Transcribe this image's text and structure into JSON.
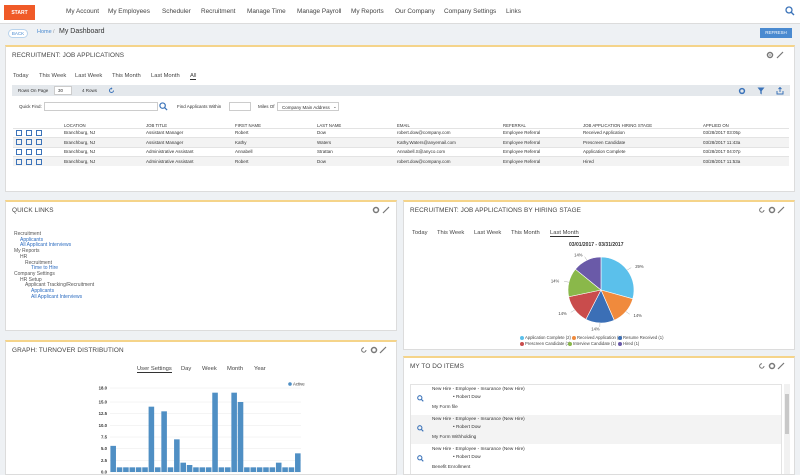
{
  "topnav": {
    "start": "START",
    "items": [
      "My Account",
      "My Employees",
      "Scheduler",
      "Recruitment",
      "Manage Time",
      "Manage Payroll",
      "My Reports",
      "Our Company",
      "Company Settings",
      "Links"
    ]
  },
  "subbar": {
    "back": "BACK",
    "home": "Home",
    "sep": "/",
    "current": "My Dashboard",
    "refresh": "REFRESH"
  },
  "recruit": {
    "title": "RECRUITMENT: JOB APPLICATIONS",
    "tabs": [
      "Today",
      "This Week",
      "Last Week",
      "This Month",
      "Last Month",
      "All"
    ],
    "active_tab": "All",
    "rows_label": "Rows On Page",
    "rows_value": "30",
    "count": "4 Rows",
    "quick_find": "Quick Find:",
    "within": "Find Applicants Within",
    "miles": "Miles Of",
    "address": "Company Main Address",
    "columns": [
      "LOCATION",
      "JOB TITLE",
      "FIRST NAME",
      "LAST NAME",
      "EMAIL",
      "REFERRAL",
      "JOB APPLICATION HIRING STAGE",
      "APPLIED ON"
    ],
    "rows": [
      [
        "Branchburg, NJ",
        "Assistant Manager",
        "Robert",
        "Dow",
        "robert.dow@company.com",
        "Employee Referral",
        "Received Application",
        "03/28/2017 03:05p"
      ],
      [
        "Branchburg, NJ",
        "Assistant Manager",
        "Kathy",
        "Waters",
        "Kathy.Waters@anyemail.com",
        "Employee Referral",
        "Prescreen Candidate",
        "03/28/2017 11:43a"
      ],
      [
        "Branchburg, NJ",
        "Administrative Assistant",
        "Annabell",
        "Strattan",
        "Annabell.S@anyco.com",
        "Employee Referral",
        "Application Complete",
        "03/28/2017 04:07p"
      ],
      [
        "Branchburg, NJ",
        "Administrative Assistant",
        "Robert",
        "Dow",
        "robert.dow@company.com",
        "Employee Referral",
        "Hired",
        "03/28/2017 11:53a"
      ]
    ]
  },
  "quicklinks": {
    "title": "QUICK LINKS",
    "items": [
      {
        "text": "Recruitment",
        "level": 0,
        "link": false
      },
      {
        "text": "Applicants",
        "level": 1,
        "link": true
      },
      {
        "text": "All Applicant Interviews",
        "level": 1,
        "link": true
      },
      {
        "text": "My Reports",
        "level": 0,
        "link": false
      },
      {
        "text": "HR",
        "level": 1,
        "link": false
      },
      {
        "text": "Recruitment",
        "level": 2,
        "link": false
      },
      {
        "text": "Time to Hire",
        "level": 3,
        "link": true
      },
      {
        "text": "Company Settings",
        "level": 0,
        "link": false
      },
      {
        "text": "HR Setup",
        "level": 1,
        "link": false
      },
      {
        "text": "Applicant Tracking/Recruitment",
        "level": 2,
        "link": false
      },
      {
        "text": "Applicants",
        "level": 3,
        "link": true
      },
      {
        "text": "All Applicant Interviews",
        "level": 3,
        "link": true
      }
    ]
  },
  "stage": {
    "title": "RECRUITMENT: JOB APPLICATIONS BY HIRING STAGE",
    "tabs": [
      "Today",
      "This Week",
      "Last Week",
      "This Month",
      "Last Month"
    ],
    "active_tab": "Last Month",
    "chart_data": {
      "type": "pie",
      "title": "03/01/2017 - 03/31/2017",
      "slices": [
        {
          "name": "Application Complete (2)",
          "value": 29,
          "label": "29%",
          "color": "#5bc0eb"
        },
        {
          "name": "Received Application (1)",
          "value": 14,
          "label": "14%",
          "color": "#f08a3c"
        },
        {
          "name": "Resume Received (1)",
          "value": 14,
          "label": "14%",
          "color": "#3b6fb6"
        },
        {
          "name": "Prescreen Candidate (1)",
          "value": 14,
          "label": "14%",
          "color": "#c94c4c"
        },
        {
          "name": "Interview Candidate (1)",
          "value": 14,
          "label": "14%",
          "color": "#8ab84a"
        },
        {
          "name": "Hired (1)",
          "value": 14,
          "label": "14%",
          "color": "#6a5aa8"
        }
      ]
    }
  },
  "turnover": {
    "title": "GRAPH: TURNOVER DISTRIBUTION",
    "tabs": [
      "User Settings",
      "Day",
      "Week",
      "Month",
      "Year"
    ],
    "active_tab": "User Settings",
    "chart_data": {
      "type": "bar",
      "series": [
        {
          "name": "Active",
          "color": "#4f8fc4",
          "values": [
            5.6,
            1,
            1,
            1,
            1,
            1,
            14,
            1,
            13,
            1,
            7,
            2,
            1.5,
            1,
            1,
            1,
            17,
            1,
            1,
            17,
            15,
            1,
            1,
            1,
            1,
            1,
            2,
            1,
            1,
            4
          ]
        }
      ],
      "ylim": [
        0,
        18
      ],
      "yticks": [
        "0.0",
        "2.5",
        "5.0",
        "7.5",
        "10.0",
        "12.5",
        "15.0",
        "18.0"
      ]
    }
  },
  "todo": {
    "title": "MY TO DO ITEMS",
    "items": [
      {
        "title": "New Hire - Employee - Insurance (New Hire)",
        "person": "Robert Dow",
        "form": "My Form file"
      },
      {
        "title": "New Hire - Employee - Insurance (New Hire)",
        "person": "Robert Dow",
        "form": "My Form Withholding"
      },
      {
        "title": "New Hire - Employee - Insurance (New Hire)",
        "person": "Robert Dow",
        "form": "Benefit Enrollment"
      }
    ]
  }
}
